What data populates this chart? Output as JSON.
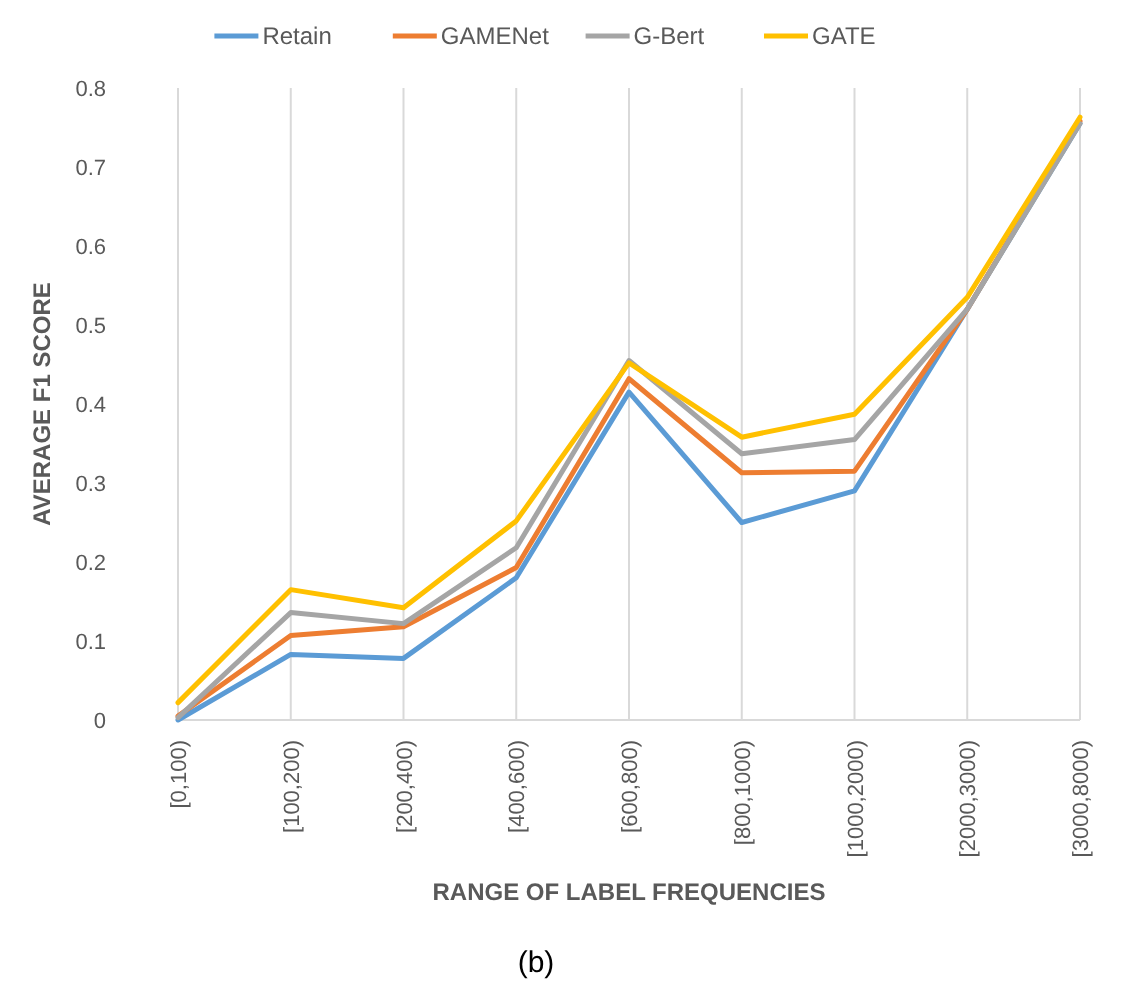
{
  "chart_data": {
    "type": "line",
    "xlabel": "RANGE OF LABEL FREQUENCIES",
    "ylabel": "AVERAGE F1 SCORE",
    "annotations": [
      "(b)"
    ],
    "categories": [
      "[0,100)",
      "[100,200)",
      "[200,400)",
      "[400,600)",
      "[600,800)",
      "[800,1000)",
      "[1000,2000)",
      "[2000,3000)",
      "[3000,8000)"
    ],
    "series": [
      {
        "name": "Retain",
        "color": "#5b9bd5",
        "values": [
          0.0,
          0.083,
          0.078,
          0.18,
          0.415,
          0.25,
          0.29,
          0.52,
          0.755
        ]
      },
      {
        "name": "GAMENet",
        "color": "#ed7d31",
        "values": [
          0.005,
          0.107,
          0.118,
          0.193,
          0.432,
          0.313,
          0.315,
          0.52,
          0.758
        ]
      },
      {
        "name": "G-Bert",
        "color": "#a5a5a5",
        "values": [
          0.003,
          0.136,
          0.122,
          0.218,
          0.455,
          0.337,
          0.355,
          0.52,
          0.755
        ]
      },
      {
        "name": "GATE",
        "color": "#ffc000",
        "values": [
          0.022,
          0.165,
          0.142,
          0.252,
          0.452,
          0.358,
          0.387,
          0.535,
          0.763
        ]
      }
    ],
    "ylim": [
      0,
      0.8
    ],
    "yticks": [
      0,
      0.1,
      0.2,
      0.3,
      0.4,
      0.5,
      0.6,
      0.7,
      0.8
    ],
    "grid": "x",
    "legend": "top",
    "marker": "none",
    "line_style": "solid"
  }
}
